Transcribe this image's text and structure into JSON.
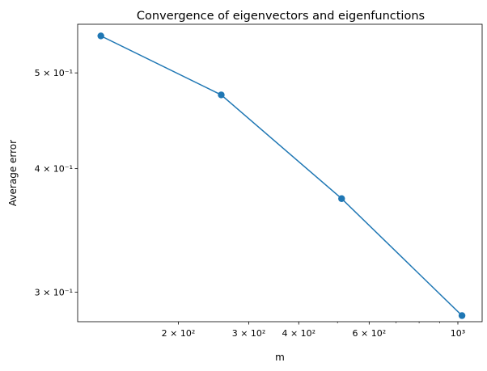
{
  "chart_data": {
    "type": "line",
    "title": "Convergence of eigenvectors and eigenfunctions",
    "xlabel": "m",
    "ylabel": "Average error",
    "xscale": "log",
    "yscale": "log",
    "xlim": [
      112,
      1150
    ],
    "ylim": [
      0.28,
      0.56
    ],
    "grid": false,
    "line_color": "#1f77b4",
    "series": [
      {
        "x": [
          128,
          256,
          512,
          1024
        ],
        "y": [
          0.545,
          0.475,
          0.373,
          0.284
        ]
      }
    ],
    "x_major_ticks": [
      {
        "value": 200,
        "label": "2 × 10²"
      },
      {
        "value": 300,
        "label": "3 × 10²"
      },
      {
        "value": 400,
        "label": "4 × 10²"
      },
      {
        "value": 600,
        "label": "6 × 10²"
      },
      {
        "value": 1000,
        "label": "10³"
      }
    ],
    "x_minor_ticks": [
      500,
      700,
      800,
      900
    ],
    "y_major_ticks": [
      {
        "value": 0.3,
        "label": "3 × 10⁻¹"
      },
      {
        "value": 0.4,
        "label": "4 × 10⁻¹"
      },
      {
        "value": 0.5,
        "label": "5 × 10⁻¹"
      }
    ]
  }
}
